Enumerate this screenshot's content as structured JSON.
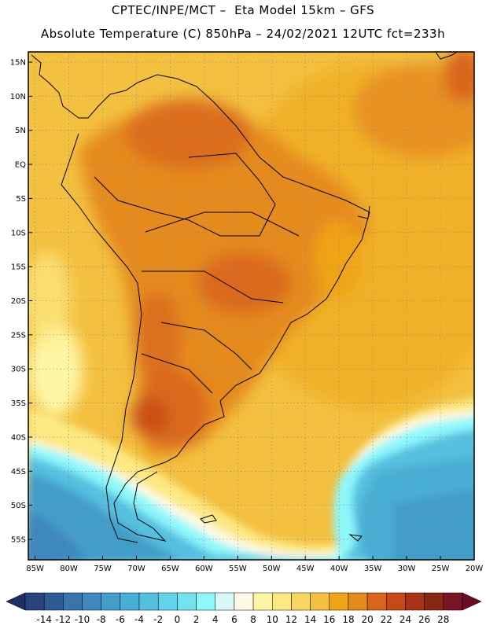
{
  "title": {
    "line1": "CPTEC/INPE/MCT –  Eta Model 15km – GFS",
    "line2": "Absolute Temperature (C) 850hPa – 24/02/2021 12UTC fct=233h"
  },
  "axes": {
    "lat_labels": [
      "15N",
      "10N",
      "5N",
      "EQ",
      "5S",
      "10S",
      "15S",
      "20S",
      "25S",
      "30S",
      "35S",
      "40S",
      "45S",
      "50S",
      "55S"
    ],
    "lat_values": [
      15,
      10,
      5,
      0,
      -5,
      -10,
      -15,
      -20,
      -25,
      -30,
      -35,
      -40,
      -45,
      -50,
      -55
    ],
    "lon_labels": [
      "85W",
      "80W",
      "75W",
      "70W",
      "65W",
      "60W",
      "55W",
      "50W",
      "45W",
      "40W",
      "35W",
      "30W",
      "25W",
      "20W"
    ],
    "lon_values": [
      -85,
      -80,
      -75,
      -70,
      -65,
      -60,
      -55,
      -50,
      -45,
      -40,
      -35,
      -30,
      -25,
      -20
    ],
    "lon_range": [
      -86,
      -20
    ],
    "lat_range": [
      -58,
      16.5
    ]
  },
  "colorbar": {
    "labels": [
      "-14",
      "-12",
      "-10",
      "-8",
      "-6",
      "-4",
      "-2",
      "0",
      "2",
      "4",
      "6",
      "8",
      "10",
      "12",
      "14",
      "16",
      "18",
      "20",
      "22",
      "24",
      "26",
      "28"
    ],
    "colors": [
      "#27447f",
      "#2b5a97",
      "#3a74ad",
      "#3e88bf",
      "#439dc9",
      "#48aed4",
      "#54c0df",
      "#63d3ea",
      "#72e4f1",
      "#8ef8fb",
      "#d9f8f8",
      "#fff9e8",
      "#fef6a4",
      "#fce981",
      "#f8d660",
      "#f3c03f",
      "#efa414",
      "#e58a1e",
      "#d9651a",
      "#c54a16",
      "#a83314",
      "#872712",
      "#7b1424"
    ]
  }
}
